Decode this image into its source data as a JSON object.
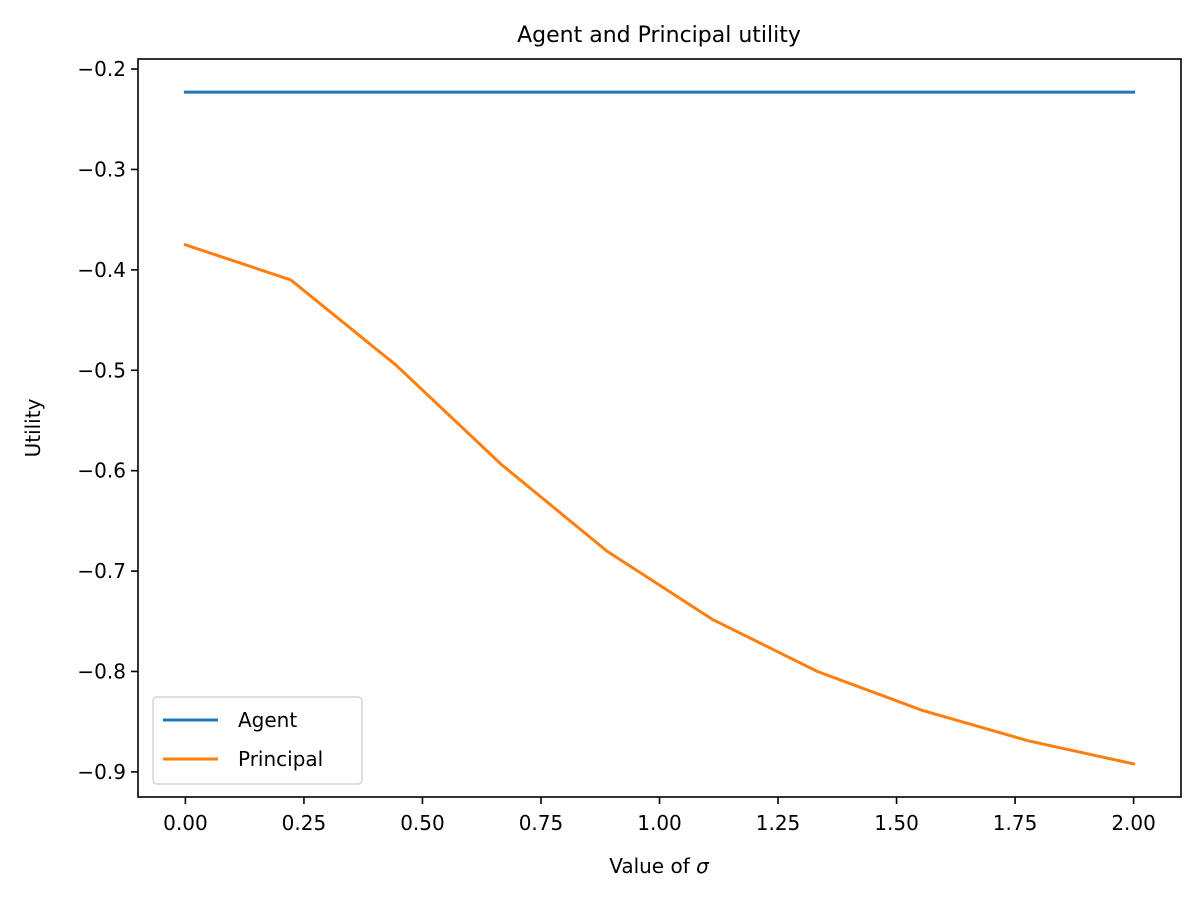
{
  "chart_data": {
    "type": "line",
    "title": "Agent and Principal utility",
    "xlabel_text": "Value of ",
    "xlabel_symbol": "σ",
    "ylabel": "Utility",
    "xlim": [
      -0.1,
      2.1
    ],
    "ylim": [
      -0.925,
      -0.19
    ],
    "xticks": [
      0.0,
      0.25,
      0.5,
      0.75,
      1.0,
      1.25,
      1.5,
      1.75,
      2.0
    ],
    "xtick_labels": [
      "0.00",
      "0.25",
      "0.50",
      "0.75",
      "1.00",
      "1.25",
      "1.50",
      "1.75",
      "2.00"
    ],
    "yticks": [
      -0.2,
      -0.3,
      -0.4,
      -0.5,
      -0.6,
      -0.7,
      -0.8,
      -0.9
    ],
    "ytick_labels": [
      "−0.2",
      "−0.3",
      "−0.4",
      "−0.5",
      "−0.6",
      "−0.7",
      "−0.8",
      "−0.9"
    ],
    "grid": false,
    "legend_position": "lower-left",
    "x": [
      0.0,
      0.2222,
      0.4444,
      0.6667,
      0.8889,
      1.1111,
      1.3333,
      1.5556,
      1.7778,
      2.0
    ],
    "series": [
      {
        "name": "Agent",
        "color": "#1f77b4",
        "values": [
          -0.223,
          -0.223,
          -0.223,
          -0.223,
          -0.223,
          -0.223,
          -0.223,
          -0.223,
          -0.223,
          -0.223
        ]
      },
      {
        "name": "Principal",
        "color": "#ff7f0e",
        "values": [
          -0.375,
          -0.41,
          -0.495,
          -0.594,
          -0.68,
          -0.748,
          -0.8,
          -0.839,
          -0.869,
          -0.892
        ]
      }
    ]
  }
}
